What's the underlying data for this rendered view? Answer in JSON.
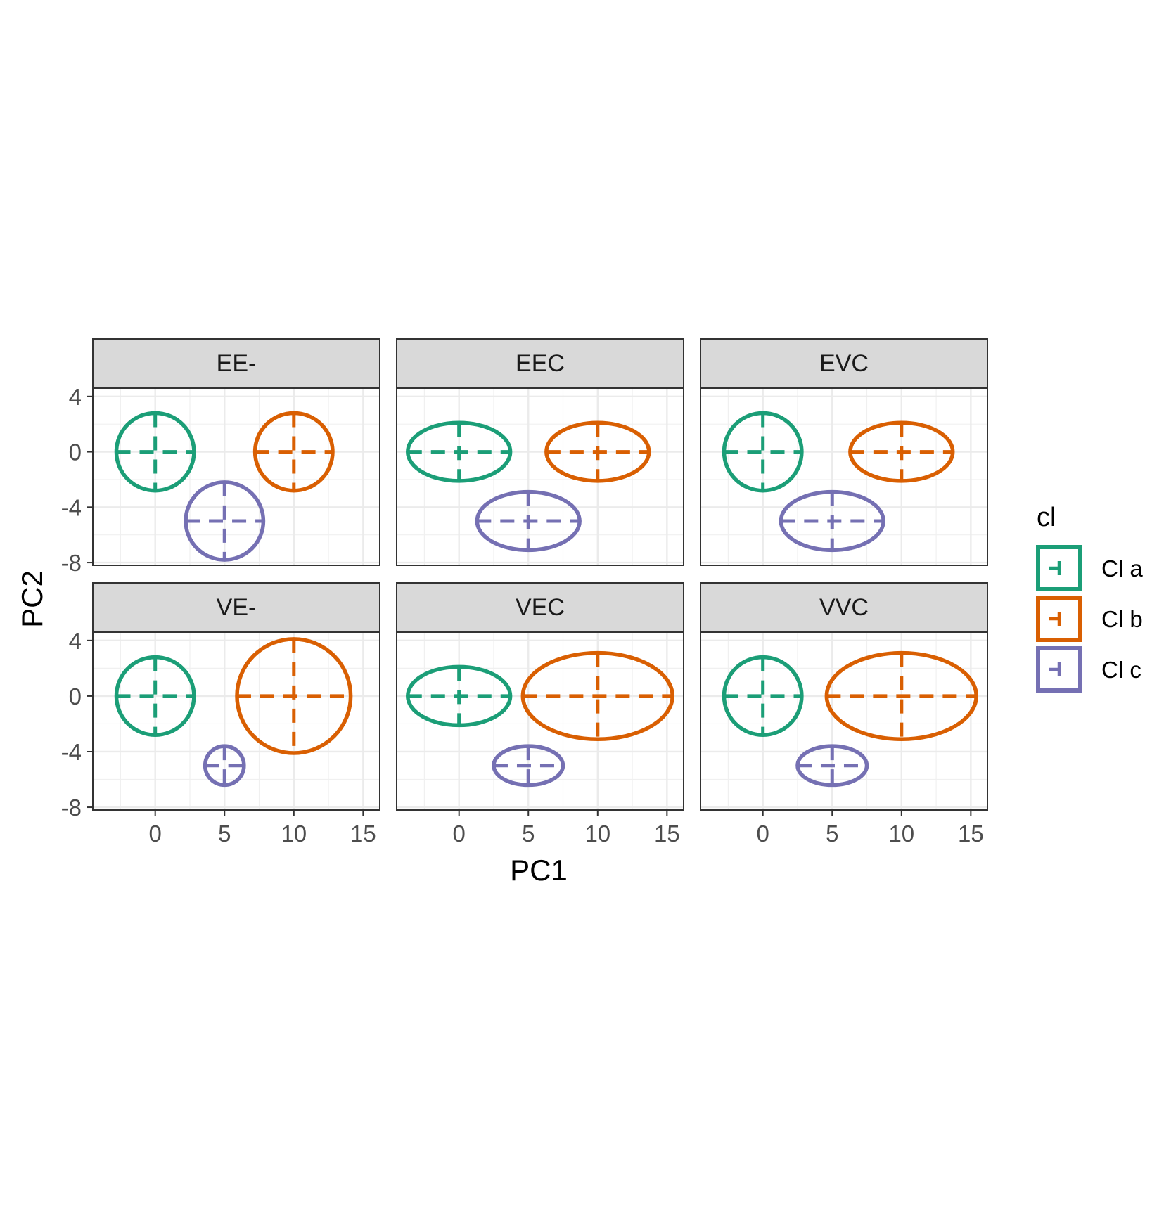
{
  "chart_data": {
    "type": "scatter",
    "subtype": "faceted ellipse plot",
    "xlabel": "PC1",
    "ylabel": "PC2",
    "xlim": [
      -4.5,
      16.2
    ],
    "ylim": [
      -8.2,
      4.6
    ],
    "x_ticks": [
      0,
      5,
      10,
      15
    ],
    "y_ticks": [
      4,
      0,
      -4,
      -8
    ],
    "x_tick_labels": [
      "0",
      "5",
      "10",
      "15"
    ],
    "y_tick_labels": [
      "4",
      "0",
      "-4",
      "-8"
    ],
    "grid": true,
    "legend": {
      "title": "cl",
      "position": "right",
      "entries": [
        {
          "label": "Cl a",
          "color": "#1b9e77"
        },
        {
          "label": "Cl b",
          "color": "#d95f02"
        },
        {
          "label": "Cl c",
          "color": "#7570b3"
        }
      ]
    },
    "facets": [
      {
        "label": "EE-",
        "ellipses": [
          {
            "cluster": "Cl a",
            "cx": 0,
            "cy": 0,
            "rx": 2.8,
            "ry": 2.8
          },
          {
            "cluster": "Cl b",
            "cx": 10,
            "cy": 0,
            "rx": 2.8,
            "ry": 2.8
          },
          {
            "cluster": "Cl c",
            "cx": 5,
            "cy": -5,
            "rx": 2.8,
            "ry": 2.8
          }
        ]
      },
      {
        "label": "EEC",
        "ellipses": [
          {
            "cluster": "Cl a",
            "cx": 0,
            "cy": 0,
            "rx": 3.7,
            "ry": 2.1
          },
          {
            "cluster": "Cl b",
            "cx": 10,
            "cy": 0,
            "rx": 3.7,
            "ry": 2.1
          },
          {
            "cluster": "Cl c",
            "cx": 5,
            "cy": -5,
            "rx": 3.7,
            "ry": 2.1
          }
        ]
      },
      {
        "label": "EVC",
        "ellipses": [
          {
            "cluster": "Cl a",
            "cx": 0,
            "cy": 0,
            "rx": 2.8,
            "ry": 2.8
          },
          {
            "cluster": "Cl b",
            "cx": 10,
            "cy": 0,
            "rx": 3.7,
            "ry": 2.1
          },
          {
            "cluster": "Cl c",
            "cx": 5,
            "cy": -5,
            "rx": 3.7,
            "ry": 2.1
          }
        ]
      },
      {
        "label": "VE-",
        "ellipses": [
          {
            "cluster": "Cl a",
            "cx": 0,
            "cy": 0,
            "rx": 2.8,
            "ry": 2.8
          },
          {
            "cluster": "Cl b",
            "cx": 10,
            "cy": 0,
            "rx": 4.1,
            "ry": 4.1
          },
          {
            "cluster": "Cl c",
            "cx": 5,
            "cy": -5,
            "rx": 1.4,
            "ry": 1.4
          }
        ]
      },
      {
        "label": "VEC",
        "ellipses": [
          {
            "cluster": "Cl a",
            "cx": 0,
            "cy": 0,
            "rx": 3.7,
            "ry": 2.1
          },
          {
            "cluster": "Cl b",
            "cx": 10,
            "cy": 0,
            "rx": 5.4,
            "ry": 3.1
          },
          {
            "cluster": "Cl c",
            "cx": 5,
            "cy": -5,
            "rx": 2.5,
            "ry": 1.4
          }
        ]
      },
      {
        "label": "VVC",
        "ellipses": [
          {
            "cluster": "Cl a",
            "cx": 0,
            "cy": 0,
            "rx": 2.8,
            "ry": 2.8
          },
          {
            "cluster": "Cl b",
            "cx": 10,
            "cy": 0,
            "rx": 5.4,
            "ry": 3.1
          },
          {
            "cluster": "Cl c",
            "cx": 5,
            "cy": -5,
            "rx": 2.5,
            "ry": 1.4
          }
        ]
      }
    ]
  }
}
